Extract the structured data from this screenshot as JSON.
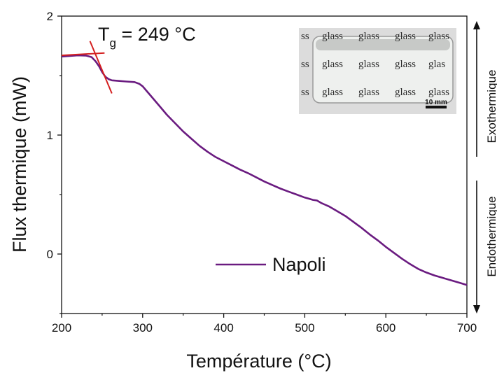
{
  "chart_data": {
    "type": "line",
    "xlabel": "Température (°C)",
    "ylabel": "Flux thermique (mW)",
    "xlim": [
      200,
      700
    ],
    "ylim": [
      -0.5,
      2
    ],
    "xticks": [
      200,
      300,
      400,
      500,
      600,
      700
    ],
    "yticks": [
      0,
      1,
      2
    ],
    "x_tick_labels": [
      "200",
      "300",
      "400",
      "500",
      "600",
      "700"
    ],
    "y_tick_labels": [
      "0",
      "1",
      "2"
    ],
    "grid": false,
    "legend_position": "bottom-center",
    "series": [
      {
        "name": "Napoli",
        "color": "#6a1b80",
        "x": [
          200,
          210,
          220,
          230,
          237,
          242,
          246,
          250,
          254,
          258,
          262,
          270,
          280,
          290,
          296,
          300,
          305,
          310,
          320,
          330,
          340,
          350,
          360,
          370,
          380,
          390,
          400,
          410,
          420,
          430,
          440,
          450,
          460,
          470,
          480,
          490,
          500,
          505,
          510,
          515,
          520,
          525,
          530,
          540,
          550,
          560,
          570,
          580,
          590,
          600,
          610,
          620,
          630,
          640,
          650,
          660,
          670,
          680,
          690,
          700
        ],
        "y": [
          1.66,
          1.665,
          1.67,
          1.668,
          1.655,
          1.62,
          1.58,
          1.53,
          1.49,
          1.47,
          1.46,
          1.455,
          1.45,
          1.445,
          1.43,
          1.41,
          1.37,
          1.33,
          1.25,
          1.17,
          1.1,
          1.03,
          0.97,
          0.91,
          0.86,
          0.815,
          0.78,
          0.745,
          0.71,
          0.68,
          0.645,
          0.61,
          0.58,
          0.55,
          0.525,
          0.5,
          0.475,
          0.465,
          0.455,
          0.45,
          0.43,
          0.415,
          0.4,
          0.36,
          0.32,
          0.27,
          0.22,
          0.165,
          0.115,
          0.06,
          0.01,
          -0.04,
          -0.085,
          -0.125,
          -0.155,
          -0.18,
          -0.2,
          -0.22,
          -0.24,
          -0.26
        ]
      }
    ],
    "annotations": {
      "tg_prefix": "T",
      "tg_subscript": "g",
      "tg_value": " = 249 °C",
      "tangent_color": "#d42020",
      "tangent_lines": [
        {
          "x": [
            200,
            253
          ],
          "y": [
            1.67,
            1.69
          ]
        },
        {
          "x": [
            235,
            262
          ],
          "y": [
            1.79,
            1.35
          ]
        }
      ]
    },
    "side_labels": {
      "exothermic": "Exothermique",
      "endothermic": "Endothermique"
    },
    "inset_photo": {
      "rows": [
        [
          "ss",
          "glass",
          "glass",
          "glass",
          "glass"
        ],
        [
          "ss",
          "glass",
          "glass",
          "glass",
          "glas"
        ],
        [
          "ss",
          "glass",
          "glass",
          "glass",
          "glass"
        ]
      ],
      "scale_bar": "10 mm"
    }
  }
}
